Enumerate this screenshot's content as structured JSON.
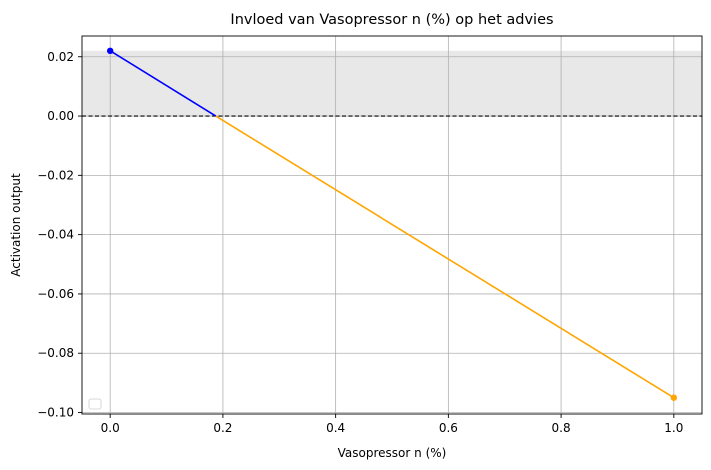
{
  "chart_data": {
    "type": "line",
    "title": "Invloed van Vasopressor n (%) op het advies",
    "xlabel": "Vasopressor n (%)",
    "ylabel": "Activation output",
    "xlim": [
      -0.05,
      1.05
    ],
    "ylim": [
      -0.1005,
      0.027
    ],
    "xticks": [
      0.0,
      0.2,
      0.4,
      0.6,
      0.8,
      1.0
    ],
    "xtick_labels": [
      "0.0",
      "0.2",
      "0.4",
      "0.6",
      "0.8",
      "1.0"
    ],
    "yticks": [
      0.02,
      0.0,
      -0.02,
      -0.04,
      -0.06,
      -0.08,
      -0.1
    ],
    "ytick_labels": [
      "0.02",
      "0.00",
      "−0.02",
      "−0.04",
      "−0.06",
      "−0.08",
      "−0.10"
    ],
    "grid": true,
    "shaded_band": {
      "y_from": 0.0,
      "y_to": 0.022,
      "color": "#e8e8e8"
    },
    "reference_line": {
      "y": 0.0,
      "style": "dashed",
      "color": "#000000"
    },
    "series": [
      {
        "color": "#0000ff",
        "x": [
          0.0,
          0.1874
        ],
        "y": [
          0.022,
          0.0
        ],
        "markers": [
          0
        ]
      },
      {
        "color": "#ffa500",
        "x": [
          0.1874,
          1.0
        ],
        "y": [
          0.0,
          -0.095
        ],
        "markers": [
          1
        ]
      }
    ],
    "legend": {
      "placement": "lower-left",
      "entries": []
    }
  }
}
